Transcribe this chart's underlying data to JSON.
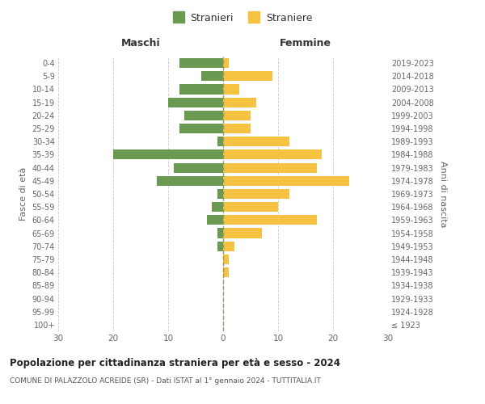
{
  "age_groups": [
    "100+",
    "95-99",
    "90-94",
    "85-89",
    "80-84",
    "75-79",
    "70-74",
    "65-69",
    "60-64",
    "55-59",
    "50-54",
    "45-49",
    "40-44",
    "35-39",
    "30-34",
    "25-29",
    "20-24",
    "15-19",
    "10-14",
    "5-9",
    "0-4"
  ],
  "birth_years": [
    "≤ 1923",
    "1924-1928",
    "1929-1933",
    "1934-1938",
    "1939-1943",
    "1944-1948",
    "1949-1953",
    "1954-1958",
    "1959-1963",
    "1964-1968",
    "1969-1973",
    "1974-1978",
    "1979-1983",
    "1984-1988",
    "1989-1993",
    "1994-1998",
    "1999-2003",
    "2004-2008",
    "2009-2013",
    "2014-2018",
    "2019-2023"
  ],
  "males": [
    0,
    0,
    0,
    0,
    0,
    0,
    1,
    1,
    3,
    2,
    1,
    12,
    9,
    20,
    1,
    8,
    7,
    10,
    8,
    4,
    8
  ],
  "females": [
    0,
    0,
    0,
    0,
    1,
    1,
    2,
    7,
    17,
    10,
    12,
    23,
    17,
    18,
    12,
    5,
    5,
    6,
    3,
    9,
    1
  ],
  "male_color": "#6a9a52",
  "female_color": "#f5c242",
  "male_label": "Stranieri",
  "female_label": "Straniere",
  "title": "Popolazione per cittadinanza straniera per età e sesso - 2024",
  "subtitle": "COMUNE DI PALAZZOLO ACREIDE (SR) - Dati ISTAT al 1° gennaio 2024 - TUTTITALIA.IT",
  "xlabel_left": "Maschi",
  "xlabel_right": "Femmine",
  "ylabel_left": "Fasce di età",
  "ylabel_right": "Anni di nascita",
  "xlim": 30,
  "background_color": "#ffffff",
  "grid_color": "#cccccc",
  "bar_height": 0.75,
  "dashed_line_color": "#999966"
}
